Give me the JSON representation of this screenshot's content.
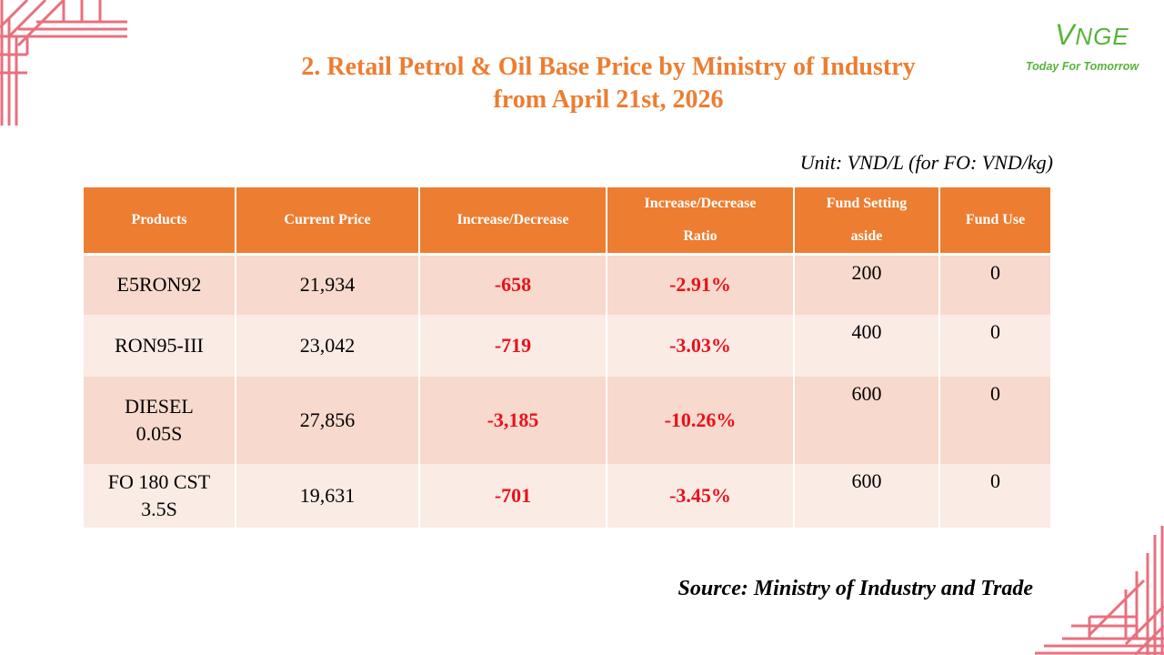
{
  "title": {
    "line1": "2. Retail Petrol & Oil Base Price by Ministry of Industry",
    "line2": "from April 21st, 2026"
  },
  "logo": {
    "mark_v": "V",
    "mark_rest": "NGE",
    "tagline": "Today For Tomorrow"
  },
  "unit": "Unit: VND/L (for FO: VND/kg)",
  "table": {
    "headers": {
      "products": "Products",
      "current_price": "Current Price",
      "change": "Increase/Decrease",
      "ratio_1": "Increase/Decrease",
      "ratio_2": "Ratio",
      "fund_setting_1": "Fund Setting",
      "fund_setting_2": "aside",
      "fund_use": "Fund Use"
    },
    "rows": [
      {
        "product": "E5RON92",
        "price": "21,934",
        "change": "-658",
        "ratio": "-2.91%",
        "fund_setting": "200",
        "fund_use": "0"
      },
      {
        "product": "RON95-III",
        "price": "23,042",
        "change": "-719",
        "ratio": "-3.03%",
        "fund_setting": "400",
        "fund_use": "0"
      },
      {
        "product_1": "DIESEL",
        "product_2": "0.05S",
        "price": "27,856",
        "change": "-3,185",
        "ratio": "-10.26%",
        "fund_setting": "600",
        "fund_use": "0"
      },
      {
        "product_1": "FO 180 CST",
        "product_2": "3.5S",
        "price": "19,631",
        "change": "-701",
        "ratio": "-3.45%",
        "fund_setting": "600",
        "fund_use": "0"
      }
    ]
  },
  "source": "Source: Ministry of Industry and Trade",
  "colors": {
    "header": "#ed7d31",
    "row_odd": "#f7d9cd",
    "row_even": "#fbebe5",
    "negative": "#e8111b",
    "decor": "#e8707e"
  }
}
